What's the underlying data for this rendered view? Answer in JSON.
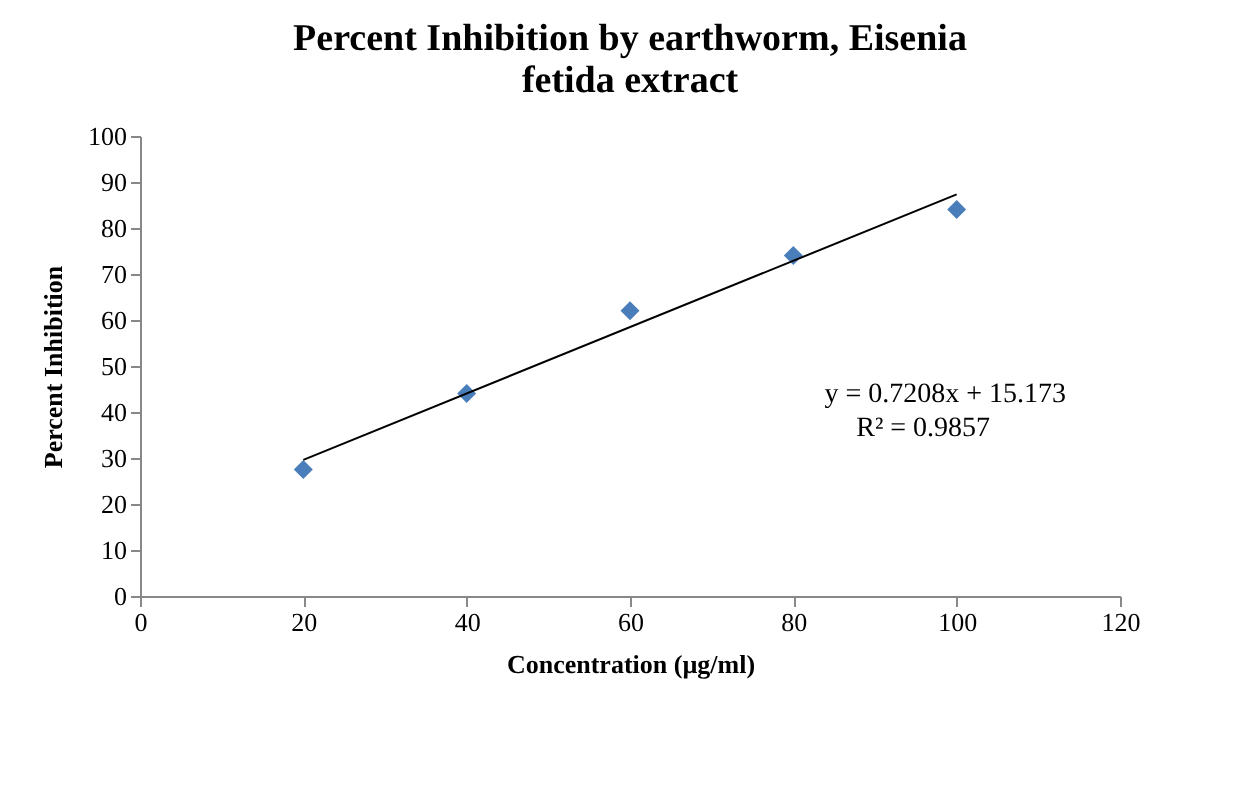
{
  "chart_data": {
    "type": "scatter",
    "title": "Percent Inhibition  by earthworm, Eisenia fetida  extract",
    "xlabel": "Concentration (µg/ml)",
    "ylabel": "Percent Inhibition",
    "x": [
      20,
      40,
      60,
      80,
      100
    ],
    "series": [
      {
        "color": "#4a7ebb",
        "marker": "diamond",
        "values": [
          27.5,
          44,
          62,
          74,
          84
        ]
      },
      {
        "type": "line",
        "color": "#000000",
        "marker": "none",
        "x": [
          20,
          100
        ],
        "values": [
          29.6,
          87.3
        ]
      }
    ],
    "annotations": [
      "y = 0.7208x + 15.173",
      "R² = 0.9857"
    ],
    "xlim": [
      0,
      120
    ],
    "xticks": [
      0,
      20,
      40,
      60,
      80,
      100,
      120
    ],
    "ylim": [
      0,
      100
    ],
    "yticks": [
      0,
      10,
      20,
      30,
      40,
      50,
      60,
      70,
      80,
      90,
      100
    ],
    "grid": false
  }
}
